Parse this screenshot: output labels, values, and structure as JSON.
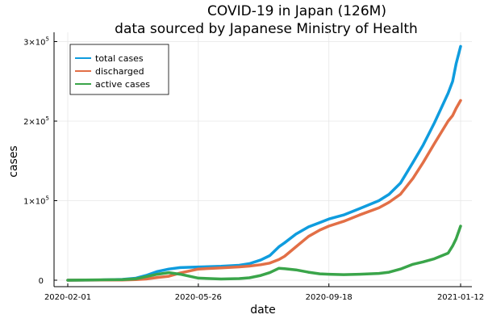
{
  "chart_data": {
    "type": "line",
    "title_line1": "COVID-19 in Japan (126M)",
    "title_line2": "data sourced by Japanese Ministry of Health",
    "xlabel": "date",
    "ylabel": "cases",
    "x_ticks": [
      "2020-02-01",
      "2020-05-26",
      "2020-09-18",
      "2021-01-12"
    ],
    "y_ticks": [
      {
        "value": 0,
        "mantissa": "0",
        "exp": ""
      },
      {
        "value": 100000,
        "mantissa": "1×10",
        "exp": "5"
      },
      {
        "value": 200000,
        "mantissa": "2×10",
        "exp": "5"
      },
      {
        "value": 300000,
        "mantissa": "3×10",
        "exp": "5"
      }
    ],
    "x_range": [
      "2020-02-01",
      "2021-01-12"
    ],
    "ylim": [
      -5000,
      303000
    ],
    "grid": true,
    "legend_position": "top-left",
    "series": [
      {
        "name": "total cases",
        "color": "#0f9cde",
        "points": [
          [
            "2020-02-01",
            0
          ],
          [
            "2020-03-01",
            300
          ],
          [
            "2020-03-20",
            1000
          ],
          [
            "2020-04-01",
            2500
          ],
          [
            "2020-04-10",
            6000
          ],
          [
            "2020-04-20",
            11000
          ],
          [
            "2020-04-30",
            14000
          ],
          [
            "2020-05-10",
            15800
          ],
          [
            "2020-05-26",
            16600
          ],
          [
            "2020-06-15",
            17500
          ],
          [
            "2020-07-01",
            18800
          ],
          [
            "2020-07-10",
            20800
          ],
          [
            "2020-07-20",
            25500
          ],
          [
            "2020-07-28",
            31000
          ],
          [
            "2020-08-05",
            42000
          ],
          [
            "2020-08-10",
            47000
          ],
          [
            "2020-08-20",
            58000
          ],
          [
            "2020-08-31",
            67000
          ],
          [
            "2020-09-10",
            72500
          ],
          [
            "2020-09-18",
            77000
          ],
          [
            "2020-10-01",
            82000
          ],
          [
            "2020-10-15",
            90000
          ],
          [
            "2020-11-01",
            100000
          ],
          [
            "2020-11-10",
            108000
          ],
          [
            "2020-11-20",
            122000
          ],
          [
            "2020-12-01",
            148000
          ],
          [
            "2020-12-10",
            170000
          ],
          [
            "2020-12-20",
            198000
          ],
          [
            "2021-01-01",
            235000
          ],
          [
            "2021-01-05",
            250000
          ],
          [
            "2021-01-08",
            272000
          ],
          [
            "2021-01-12",
            294000
          ]
        ]
      },
      {
        "name": "discharged",
        "color": "#e26f46",
        "points": [
          [
            "2020-02-01",
            0
          ],
          [
            "2020-03-20",
            300
          ],
          [
            "2020-04-01",
            800
          ],
          [
            "2020-04-10",
            1500
          ],
          [
            "2020-04-20",
            3500
          ],
          [
            "2020-04-30",
            5000
          ],
          [
            "2020-05-10",
            9000
          ],
          [
            "2020-05-26",
            14000
          ],
          [
            "2020-06-15",
            15500
          ],
          [
            "2020-07-01",
            16800
          ],
          [
            "2020-07-10",
            17800
          ],
          [
            "2020-07-20",
            19500
          ],
          [
            "2020-07-28",
            21500
          ],
          [
            "2020-08-05",
            26000
          ],
          [
            "2020-08-10",
            30000
          ],
          [
            "2020-08-20",
            42000
          ],
          [
            "2020-08-31",
            55000
          ],
          [
            "2020-09-10",
            63000
          ],
          [
            "2020-09-18",
            68000
          ],
          [
            "2020-10-01",
            74000
          ],
          [
            "2020-10-15",
            82000
          ],
          [
            "2020-11-01",
            91000
          ],
          [
            "2020-11-10",
            98000
          ],
          [
            "2020-11-20",
            108000
          ],
          [
            "2020-12-01",
            128000
          ],
          [
            "2020-12-10",
            148000
          ],
          [
            "2020-12-20",
            172000
          ],
          [
            "2021-01-01",
            200000
          ],
          [
            "2021-01-05",
            207000
          ],
          [
            "2021-01-08",
            216000
          ],
          [
            "2021-01-12",
            226000
          ]
        ]
      },
      {
        "name": "active cases",
        "color": "#3aa54a",
        "points": [
          [
            "2020-02-01",
            0
          ],
          [
            "2020-03-20",
            700
          ],
          [
            "2020-04-01",
            1700
          ],
          [
            "2020-04-10",
            4500
          ],
          [
            "2020-04-20",
            7500
          ],
          [
            "2020-04-30",
            9500
          ],
          [
            "2020-05-10",
            7500
          ],
          [
            "2020-05-26",
            2600
          ],
          [
            "2020-06-15",
            1500
          ],
          [
            "2020-07-01",
            2000
          ],
          [
            "2020-07-10",
            3000
          ],
          [
            "2020-07-20",
            6000
          ],
          [
            "2020-07-28",
            9500
          ],
          [
            "2020-08-05",
            15000
          ],
          [
            "2020-08-10",
            14500
          ],
          [
            "2020-08-20",
            13000
          ],
          [
            "2020-08-31",
            10000
          ],
          [
            "2020-09-10",
            8000
          ],
          [
            "2020-09-18",
            7500
          ],
          [
            "2020-10-01",
            7000
          ],
          [
            "2020-10-15",
            7500
          ],
          [
            "2020-11-01",
            8500
          ],
          [
            "2020-11-10",
            10000
          ],
          [
            "2020-11-20",
            14000
          ],
          [
            "2020-12-01",
            20000
          ],
          [
            "2020-12-10",
            23000
          ],
          [
            "2020-12-20",
            27000
          ],
          [
            "2021-01-01",
            34000
          ],
          [
            "2021-01-05",
            43000
          ],
          [
            "2021-01-08",
            52000
          ],
          [
            "2021-01-12",
            68000
          ]
        ]
      }
    ]
  }
}
